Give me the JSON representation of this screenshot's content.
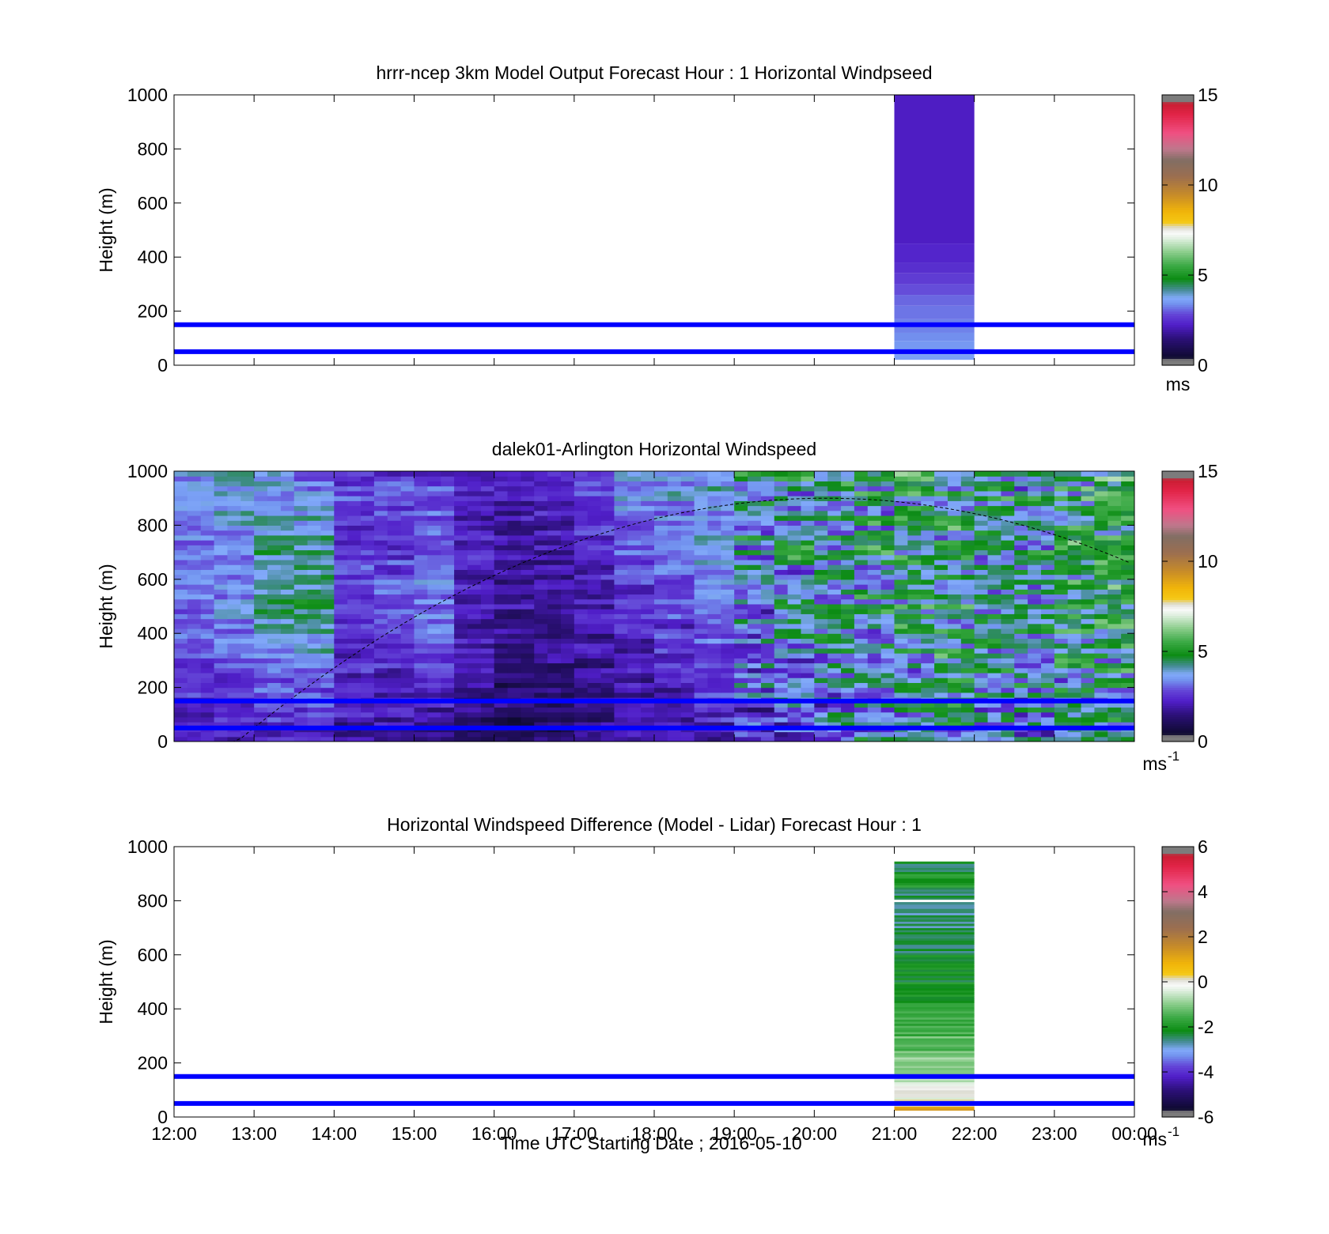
{
  "figure": {
    "xlabel": "Time UTC  Starting Date ; 2016-05-10",
    "xticks": [
      "12:00",
      "13:00",
      "14:00",
      "15:00",
      "16:00",
      "17:00",
      "18:00",
      "19:00",
      "20:00",
      "21:00",
      "22:00",
      "23:00",
      "00:00"
    ]
  },
  "chart_data": [
    {
      "type": "heatmap",
      "title": "hrrr-ncep 3km Model Output   Forecast Hour : 1 Horizontal Windpseed",
      "ylabel": "Height (m)",
      "xlim": [
        12,
        24
      ],
      "ylim": [
        0,
        1000
      ],
      "yticks": [
        "0",
        "200",
        "400",
        "600",
        "800",
        "1000"
      ],
      "colorbar": {
        "ticks": [
          "0",
          "5",
          "10",
          "15"
        ],
        "range": [
          0,
          15
        ],
        "unit": "ms"
      },
      "reference_lines_m": [
        50,
        150
      ],
      "model_column": {
        "x_range": [
          21,
          22
        ],
        "profile": [
          {
            "height": [
              20,
              40
            ],
            "speed": 3.6
          },
          {
            "height": [
              40,
              90
            ],
            "speed": 3.5
          },
          {
            "height": [
              90,
              120
            ],
            "speed": 3.4
          },
          {
            "height": [
              120,
              170
            ],
            "speed": 3.3
          },
          {
            "height": [
              170,
              220
            ],
            "speed": 3.2
          },
          {
            "height": [
              220,
              260
            ],
            "speed": 3.1
          },
          {
            "height": [
              260,
              300
            ],
            "speed": 2.9
          },
          {
            "height": [
              300,
              340
            ],
            "speed": 2.7
          },
          {
            "height": [
              340,
              380
            ],
            "speed": 2.5
          },
          {
            "height": [
              380,
              450
            ],
            "speed": 2.35
          },
          {
            "height": [
              450,
              1000
            ],
            "speed": 2.2
          }
        ]
      }
    },
    {
      "type": "heatmap",
      "title": "dalek01-Arlington  Horizontal Windspeed",
      "ylabel": "Height (m)",
      "xlim": [
        12,
        24
      ],
      "ylim": [
        0,
        1000
      ],
      "yticks": [
        "0",
        "200",
        "400",
        "600",
        "800",
        "1000"
      ],
      "colorbar": {
        "ticks": [
          "0",
          "5",
          "10",
          "15"
        ],
        "range": [
          0,
          15
        ],
        "unit": "ms",
        "unit_exponent": "-1"
      },
      "reference_lines_m": [
        50,
        150
      ],
      "boundary_layer_curve": {
        "x_start": 12.65,
        "x_end": 23.95,
        "peak_time": 20.15,
        "peak_height": 900
      },
      "lidar_speed_ms": [
        {
          "time": 12.0,
          "low": 2.0,
          "mid": 3.2,
          "high": 3.6
        },
        {
          "time": 12.5,
          "low": 2.1,
          "mid": 3.4,
          "high": 3.8
        },
        {
          "time": 13.0,
          "low": 2.1,
          "mid": 4.3,
          "high": 3.5
        },
        {
          "time": 13.5,
          "low": 2.0,
          "mid": 4.7,
          "high": 3.3
        },
        {
          "time": 14.0,
          "low": 1.9,
          "mid": 2.7,
          "high": 2.6
        },
        {
          "time": 14.5,
          "low": 1.7,
          "mid": 2.9,
          "high": 2.5
        },
        {
          "time": 15.0,
          "low": 1.6,
          "mid": 3.3,
          "high": 2.6
        },
        {
          "time": 15.5,
          "low": 1.4,
          "mid": 2.2,
          "high": 2.1
        },
        {
          "time": 16.0,
          "low": 1.1,
          "mid": 1.8,
          "high": 2.0
        },
        {
          "time": 16.5,
          "low": 1.2,
          "mid": 1.8,
          "high": 2.4
        },
        {
          "time": 17.0,
          "low": 1.4,
          "mid": 2.0,
          "high": 3.0
        },
        {
          "time": 17.5,
          "low": 1.6,
          "mid": 2.4,
          "high": 3.6
        },
        {
          "time": 18.0,
          "low": 1.8,
          "mid": 2.7,
          "high": 3.8
        },
        {
          "time": 18.5,
          "low": 2.1,
          "mid": 3.2,
          "high": 4.0
        },
        {
          "time": 19.0,
          "low": 2.6,
          "mid": 3.6,
          "high": 4.1
        },
        {
          "time": 19.5,
          "low": 2.9,
          "mid": 3.8,
          "high": 4.2
        },
        {
          "time": 20.0,
          "low": 3.2,
          "mid": 4.0,
          "high": 4.3
        },
        {
          "time": 20.5,
          "low": 3.4,
          "mid": 4.2,
          "high": 4.4
        },
        {
          "time": 21.0,
          "low": 3.7,
          "mid": 4.6,
          "high": 4.6
        },
        {
          "time": 21.5,
          "low": 3.8,
          "mid": 4.6,
          "high": 4.4
        },
        {
          "time": 22.0,
          "low": 3.5,
          "mid": 4.2,
          "high": 4.2
        },
        {
          "time": 22.5,
          "low": 3.4,
          "mid": 4.1,
          "high": 4.1
        },
        {
          "time": 23.0,
          "low": 3.6,
          "mid": 4.6,
          "high": 4.6
        },
        {
          "time": 23.5,
          "low": 3.8,
          "mid": 5.0,
          "high": 5.0
        }
      ]
    },
    {
      "type": "heatmap",
      "title": "Horizontal Windspeed Difference (Model - Lidar) Forecast Hour : 1",
      "ylabel": "Height (m)",
      "xlim": [
        12,
        24
      ],
      "ylim": [
        0,
        1000
      ],
      "yticks": [
        "0",
        "200",
        "400",
        "600",
        "800",
        "1000"
      ],
      "colorbar": {
        "ticks": [
          "-6",
          "-4",
          "-2",
          "0",
          "2",
          "4",
          "6"
        ],
        "range": [
          -6,
          6
        ],
        "unit": "ms",
        "unit_exponent": "-1"
      },
      "reference_lines_m": [
        50,
        150
      ],
      "difference_column": {
        "x_range": [
          21,
          22
        ],
        "profile": [
          {
            "height": [
              25,
              40
            ],
            "diff": 1.0
          },
          {
            "height": [
              40,
              60
            ],
            "diff": 0.3
          },
          {
            "height": [
              60,
              80
            ],
            "diff": -0.1
          },
          {
            "height": [
              80,
              100
            ],
            "diff": 0.4
          },
          {
            "height": [
              100,
              130
            ],
            "diff": -0.2
          },
          {
            "height": [
              130,
              160
            ],
            "diff": -0.5
          },
          {
            "height": [
              160,
              190
            ],
            "diff": -0.8
          },
          {
            "height": [
              190,
              230
            ],
            "diff": -1.0
          },
          {
            "height": [
              230,
              300
            ],
            "diff": -1.3
          },
          {
            "height": [
              300,
              400
            ],
            "diff": -1.6
          },
          {
            "height": [
              400,
              500
            ],
            "diff": -1.9
          },
          {
            "height": [
              500,
              600
            ],
            "diff": -2.2
          },
          {
            "height": [
              600,
              700
            ],
            "diff": -2.4
          },
          {
            "height": [
              700,
              795
            ],
            "diff": -2.6
          },
          {
            "height": [
              805,
              850
            ],
            "diff": -2.4
          },
          {
            "height": [
              850,
              900
            ],
            "diff": -2.0
          },
          {
            "height": [
              900,
              945
            ],
            "diff": -2.3
          }
        ]
      }
    }
  ]
}
